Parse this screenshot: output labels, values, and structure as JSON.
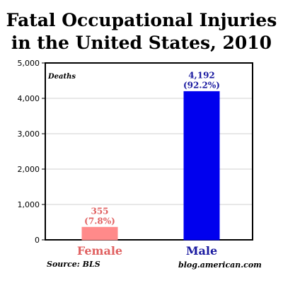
{
  "title_line1": "Fatal Occupational Injuries",
  "title_line2": "in the United States, 2010",
  "source": "Source: BLS",
  "credit": "blog.american.com",
  "colors": {
    "female": "#ff8a8a",
    "male": "#0000ee",
    "female_label": "#e06060",
    "male_label": "#1a1aa0"
  },
  "chart_data": {
    "type": "bar",
    "categories": [
      "Female",
      "Male"
    ],
    "values": [
      355,
      4192
    ],
    "data_labels": [
      [
        "355",
        "(7.8%)"
      ],
      [
        "4,192",
        "(92.2%)"
      ]
    ],
    "ylabel": "Deaths",
    "ylim": [
      0,
      5000
    ],
    "yticks": [
      0,
      1000,
      2000,
      3000,
      4000,
      5000
    ],
    "ytick_labels": [
      "0",
      "1,000",
      "2,000",
      "3,000",
      "4,000",
      "5,000"
    ],
    "grid": true
  }
}
